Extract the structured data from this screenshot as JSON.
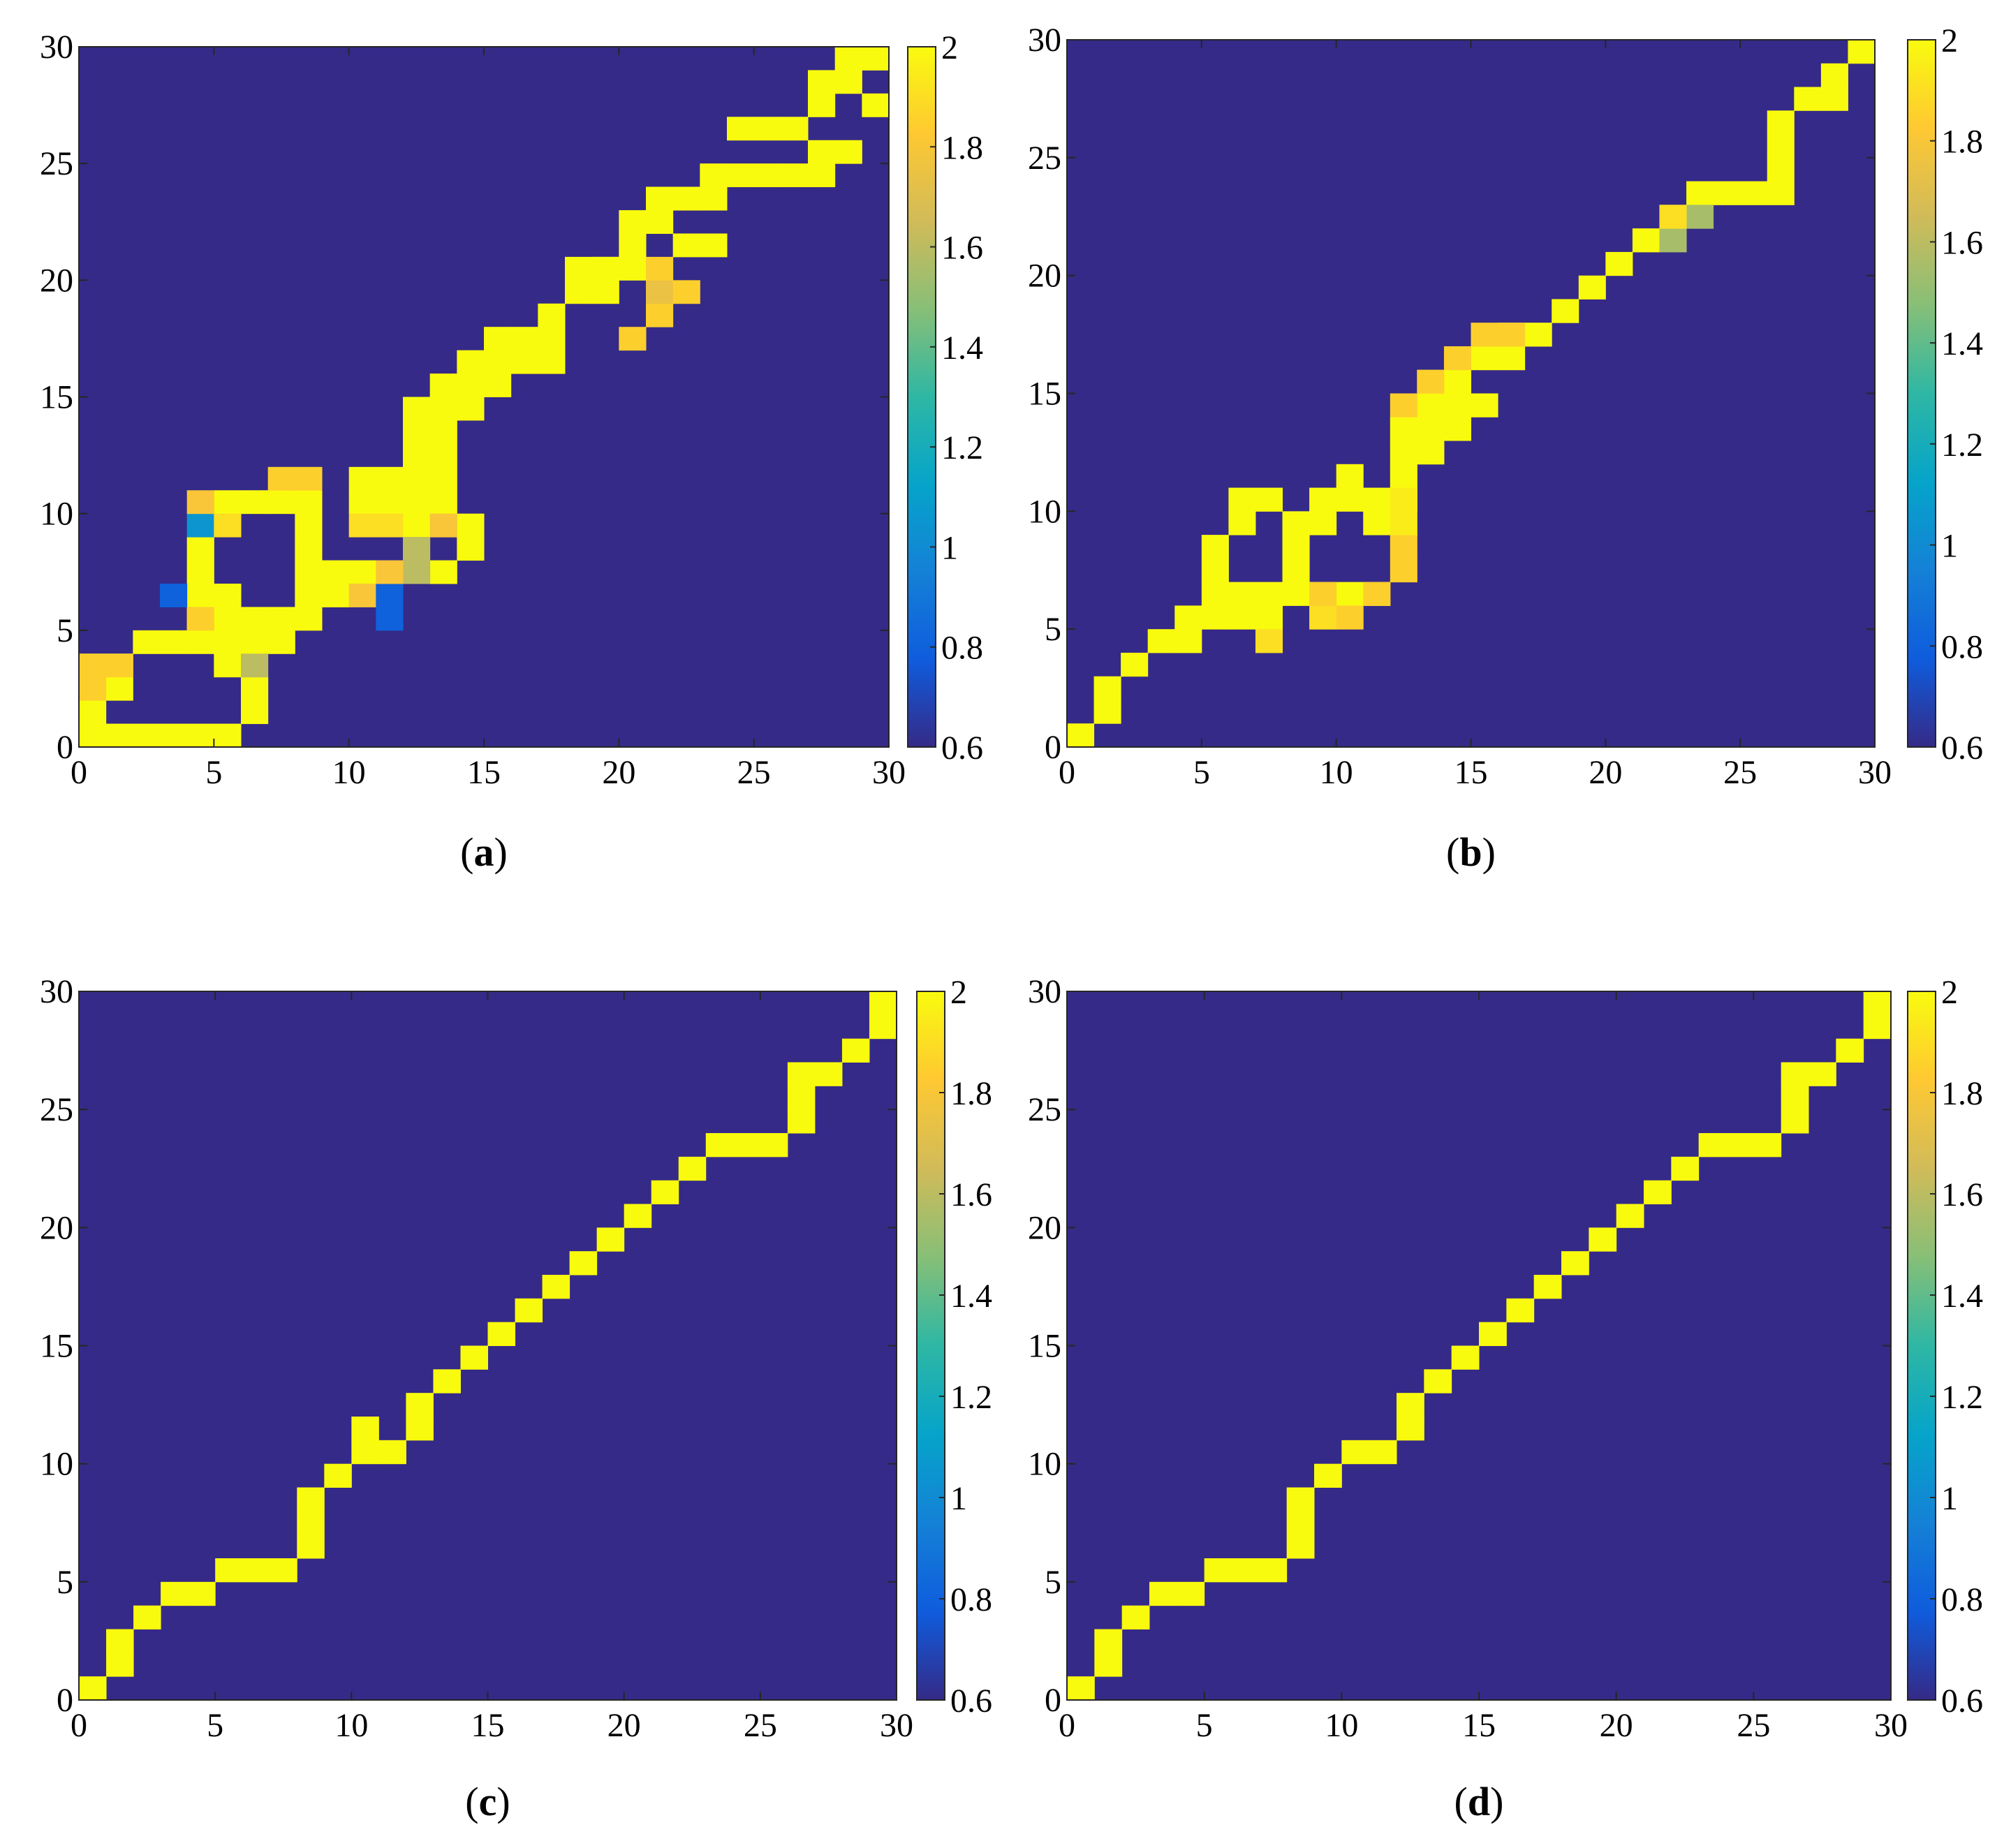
{
  "chart_data": [
    {
      "type": "heatmap",
      "caption": "(a)",
      "caption_letter": "a",
      "xlim": [
        0,
        30
      ],
      "ylim": [
        0,
        30
      ],
      "xticks": [
        0,
        5,
        10,
        15,
        20,
        25,
        30
      ],
      "yticks": [
        0,
        5,
        10,
        15,
        20,
        25,
        30
      ],
      "background_value": 0.6,
      "colorbar": {
        "min": 0.6,
        "max": 2,
        "ticks": [
          "0.6",
          "0.8",
          "1",
          "1.2",
          "1.4",
          "1.6",
          "1.8",
          "2"
        ]
      },
      "cells_note": "runs of [x_start, x_end, y] with value 2, followed by individual [x, y, value] cells",
      "runs": [
        [
          0,
          5,
          0
        ],
        [
          0,
          0,
          1
        ],
        [
          6,
          6,
          1
        ],
        [
          0,
          1,
          2
        ],
        [
          6,
          6,
          2
        ],
        [
          0,
          1,
          3
        ],
        [
          5,
          5,
          3
        ],
        [
          2,
          7,
          4
        ],
        [
          4,
          8,
          5
        ],
        [
          4,
          5,
          6
        ],
        [
          8,
          9,
          6
        ],
        [
          4,
          4,
          7
        ],
        [
          8,
          10,
          7
        ],
        [
          13,
          13,
          7
        ],
        [
          4,
          4,
          8
        ],
        [
          8,
          8,
          8
        ],
        [
          14,
          14,
          8
        ],
        [
          8,
          8,
          9
        ],
        [
          12,
          14,
          9
        ],
        [
          5,
          8,
          10
        ],
        [
          10,
          13,
          10
        ],
        [
          10,
          11,
          11
        ],
        [
          12,
          13,
          11
        ],
        [
          12,
          13,
          12
        ],
        [
          12,
          13,
          13
        ],
        [
          12,
          14,
          14
        ],
        [
          13,
          15,
          15
        ],
        [
          14,
          17,
          16
        ],
        [
          15,
          17,
          17
        ],
        [
          17,
          17,
          18
        ],
        [
          18,
          19,
          19
        ],
        [
          18,
          20,
          20
        ],
        [
          20,
          20,
          21
        ],
        [
          22,
          23,
          21
        ],
        [
          20,
          21,
          22
        ],
        [
          21,
          23,
          23
        ],
        [
          25,
          27,
          24
        ],
        [
          27,
          28,
          25
        ],
        [
          24,
          26,
          26
        ],
        [
          27,
          27,
          27
        ],
        [
          29,
          29,
          27
        ],
        [
          27,
          28,
          28
        ],
        [
          28,
          30,
          29
        ]
      ],
      "cells": [
        [
          0,
          2,
          1.85
        ],
        [
          0,
          3,
          1.85
        ],
        [
          1,
          3,
          1.85
        ],
        [
          6,
          3,
          1.6
        ],
        [
          4,
          5,
          1.85
        ],
        [
          3,
          6,
          0.8
        ],
        [
          11,
          5,
          0.8
        ],
        [
          10,
          6,
          1.8
        ],
        [
          11,
          6,
          0.8
        ],
        [
          12,
          7,
          1.6
        ],
        [
          11,
          7,
          1.8
        ],
        [
          12,
          8,
          1.6
        ],
        [
          4,
          9,
          1.05
        ],
        [
          5,
          9,
          1.9
        ],
        [
          10,
          9,
          1.9
        ],
        [
          11,
          9,
          1.9
        ],
        [
          13,
          9,
          1.8
        ],
        [
          4,
          10,
          1.8
        ],
        [
          7,
          11,
          1.85
        ],
        [
          8,
          11,
          1.85
        ],
        [
          20,
          17,
          1.85
        ],
        [
          21,
          18,
          1.85
        ],
        [
          21,
          19,
          1.75
        ],
        [
          22,
          19,
          1.85
        ],
        [
          21,
          20,
          1.85
        ],
        [
          19,
          20,
          2
        ],
        [
          21,
          23,
          2
        ],
        [
          22,
          23,
          2
        ],
        [
          23,
          24,
          2
        ],
        [
          24,
          24,
          2
        ],
        [
          30,
          28,
          2
        ]
      ]
    },
    {
      "type": "heatmap",
      "caption": "(b)",
      "caption_letter": "b",
      "xlim": [
        0,
        30
      ],
      "ylim": [
        0,
        30
      ],
      "xticks": [
        0,
        5,
        10,
        15,
        20,
        25,
        30
      ],
      "yticks": [
        0,
        5,
        10,
        15,
        20,
        25,
        30
      ],
      "background_value": 0.6,
      "colorbar": {
        "min": 0.6,
        "max": 2,
        "ticks": [
          "0.6",
          "0.8",
          "1",
          "1.2",
          "1.4",
          "1.6",
          "1.8",
          "2"
        ]
      },
      "runs": [
        [
          0,
          0,
          0
        ],
        [
          1,
          1,
          1
        ],
        [
          1,
          1,
          2
        ],
        [
          2,
          2,
          3
        ],
        [
          3,
          4,
          4
        ],
        [
          4,
          7,
          5
        ],
        [
          5,
          8,
          6
        ],
        [
          9,
          11,
          6
        ],
        [
          5,
          5,
          7
        ],
        [
          8,
          8,
          7
        ],
        [
          5,
          5,
          8
        ],
        [
          8,
          8,
          8
        ],
        [
          6,
          6,
          9
        ],
        [
          8,
          9,
          9
        ],
        [
          11,
          11,
          9
        ],
        [
          6,
          7,
          10
        ],
        [
          9,
          12,
          10
        ],
        [
          10,
          10,
          11
        ],
        [
          12,
          12,
          11
        ],
        [
          12,
          13,
          12
        ],
        [
          12,
          14,
          13
        ],
        [
          13,
          15,
          14
        ],
        [
          13,
          14,
          15
        ],
        [
          15,
          16,
          16
        ],
        [
          16,
          17,
          17
        ],
        [
          18,
          18,
          18
        ],
        [
          19,
          19,
          19
        ],
        [
          20,
          20,
          20
        ],
        [
          21,
          21,
          21
        ],
        [
          22,
          22,
          22
        ],
        [
          23,
          26,
          23
        ],
        [
          26,
          26,
          24
        ],
        [
          26,
          26,
          25
        ],
        [
          26,
          26,
          26
        ],
        [
          27,
          28,
          27
        ],
        [
          28,
          28,
          28
        ],
        [
          29,
          29,
          29
        ]
      ],
      "cells": [
        [
          7,
          4,
          1.9
        ],
        [
          9,
          5,
          1.9
        ],
        [
          9,
          6,
          1.85
        ],
        [
          10,
          5,
          1.85
        ],
        [
          11,
          6,
          1.85
        ],
        [
          12,
          7,
          1.85
        ],
        [
          12,
          8,
          1.85
        ],
        [
          12,
          9,
          1.95
        ],
        [
          12,
          10,
          1.95
        ],
        [
          12,
          14,
          1.85
        ],
        [
          13,
          15,
          1.85
        ],
        [
          14,
          16,
          1.85
        ],
        [
          15,
          17,
          1.85
        ],
        [
          16,
          17,
          1.85
        ],
        [
          22,
          21,
          1.55
        ],
        [
          23,
          22,
          1.55
        ],
        [
          22,
          22,
          1.9
        ]
      ]
    },
    {
      "type": "heatmap",
      "caption": "(c)",
      "caption_letter": "c",
      "xlim": [
        0,
        30
      ],
      "ylim": [
        0,
        30
      ],
      "xticks": [
        0,
        5,
        10,
        15,
        20,
        25,
        30
      ],
      "yticks": [
        0,
        5,
        10,
        15,
        20,
        25,
        30
      ],
      "background_value": 0.6,
      "colorbar": {
        "min": 0.6,
        "max": 2,
        "ticks": [
          "0.6",
          "0.8",
          "1",
          "1.2",
          "1.4",
          "1.6",
          "1.8",
          "2"
        ]
      },
      "runs": [
        [
          0,
          0,
          0
        ],
        [
          1,
          1,
          1
        ],
        [
          1,
          1,
          2
        ],
        [
          2,
          2,
          3
        ],
        [
          3,
          4,
          4
        ],
        [
          5,
          7,
          5
        ],
        [
          8,
          8,
          6
        ],
        [
          8,
          8,
          7
        ],
        [
          8,
          8,
          8
        ],
        [
          9,
          9,
          9
        ],
        [
          10,
          11,
          10
        ],
        [
          10,
          10,
          11
        ],
        [
          12,
          12,
          11
        ],
        [
          12,
          12,
          12
        ],
        [
          13,
          13,
          13
        ],
        [
          14,
          14,
          14
        ],
        [
          15,
          15,
          15
        ],
        [
          16,
          16,
          16
        ],
        [
          17,
          17,
          17
        ],
        [
          18,
          18,
          18
        ],
        [
          19,
          19,
          19
        ],
        [
          20,
          20,
          20
        ],
        [
          21,
          21,
          21
        ],
        [
          22,
          22,
          22
        ],
        [
          23,
          25,
          23
        ],
        [
          26,
          26,
          24
        ],
        [
          26,
          26,
          25
        ],
        [
          26,
          27,
          26
        ],
        [
          28,
          28,
          27
        ],
        [
          29,
          29,
          28
        ],
        [
          29,
          29,
          29
        ]
      ],
      "cells": []
    },
    {
      "type": "heatmap",
      "caption": "(d)",
      "caption_letter": "d",
      "xlim": [
        0,
        30
      ],
      "ylim": [
        0,
        30
      ],
      "xticks": [
        0,
        5,
        10,
        15,
        20,
        25,
        30
      ],
      "yticks": [
        0,
        5,
        10,
        15,
        20,
        25,
        30
      ],
      "background_value": 0.6,
      "colorbar": {
        "min": 0.6,
        "max": 2,
        "ticks": [
          "0.6",
          "0.8",
          "1",
          "1.2",
          "1.4",
          "1.6",
          "1.8",
          "2"
        ]
      },
      "runs": [
        [
          0,
          0,
          0
        ],
        [
          1,
          1,
          1
        ],
        [
          1,
          1,
          2
        ],
        [
          2,
          2,
          3
        ],
        [
          3,
          4,
          4
        ],
        [
          5,
          7,
          5
        ],
        [
          8,
          8,
          6
        ],
        [
          8,
          8,
          7
        ],
        [
          8,
          8,
          8
        ],
        [
          9,
          9,
          9
        ],
        [
          10,
          11,
          10
        ],
        [
          12,
          12,
          11
        ],
        [
          12,
          12,
          12
        ],
        [
          13,
          13,
          13
        ],
        [
          14,
          14,
          14
        ],
        [
          15,
          15,
          15
        ],
        [
          16,
          16,
          16
        ],
        [
          17,
          17,
          17
        ],
        [
          18,
          18,
          18
        ],
        [
          19,
          19,
          19
        ],
        [
          20,
          20,
          20
        ],
        [
          21,
          21,
          21
        ],
        [
          22,
          22,
          22
        ],
        [
          23,
          25,
          23
        ],
        [
          26,
          26,
          24
        ],
        [
          26,
          26,
          25
        ],
        [
          26,
          27,
          26
        ],
        [
          28,
          28,
          27
        ],
        [
          29,
          29,
          28
        ],
        [
          29,
          29,
          29
        ]
      ],
      "cells": []
    }
  ],
  "colors": {
    "background": "#352a87",
    "colormap": [
      "#352a87",
      "#0f5cdd",
      "#1481d6",
      "#06a4ca",
      "#2eb7a4",
      "#87bf77",
      "#d1bb59",
      "#fec832",
      "#f9fb0e"
    ]
  }
}
